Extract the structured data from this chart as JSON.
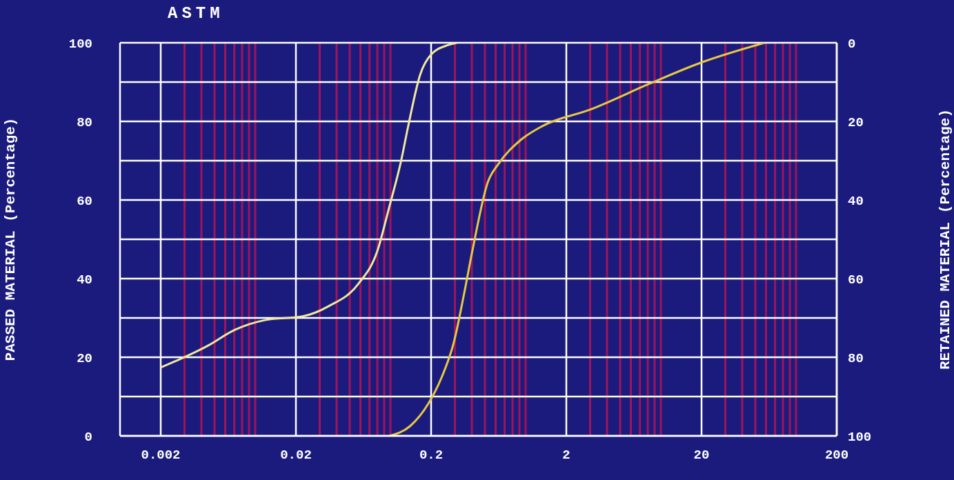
{
  "chart_data": {
    "type": "line",
    "xlabel": null,
    "ylabel": "PASSED MATERIAL (Percentage)",
    "y2label": "RETAINED MATERIAL (Percentage)",
    "annotations": [
      "ASTM"
    ],
    "log": "x",
    "grid": true,
    "marker": "none",
    "line_style": "solid",
    "xlim": [
      0.001,
      200
    ],
    "xticks": [
      0.002,
      {
        "value": 0.003,
        "label": null
      },
      {
        "value": 0.004,
        "label": null
      },
      {
        "value": 0.005,
        "label": null
      },
      {
        "value": 0.006,
        "label": null
      },
      {
        "value": 0.007,
        "label": null
      },
      {
        "value": 0.008,
        "label": null
      },
      {
        "value": 0.009,
        "label": null
      },
      {
        "value": 0.01,
        "label": null
      },
      0.02,
      {
        "value": 0.03,
        "label": null
      },
      {
        "value": 0.04,
        "label": null
      },
      {
        "value": 0.05,
        "label": null
      },
      {
        "value": 0.06,
        "label": null
      },
      {
        "value": 0.07,
        "label": null
      },
      {
        "value": 0.08,
        "label": null
      },
      {
        "value": 0.09,
        "label": null
      },
      {
        "value": 0.1,
        "label": null
      },
      0.2,
      {
        "value": 0.3,
        "label": null
      },
      {
        "value": 0.4,
        "label": null
      },
      {
        "value": 0.5,
        "label": null
      },
      {
        "value": 0.6,
        "label": null
      },
      {
        "value": 0.7,
        "label": null
      },
      {
        "value": 0.8,
        "label": null
      },
      {
        "value": 0.9,
        "label": null
      },
      {
        "value": 1,
        "label": null
      },
      2,
      {
        "value": 3,
        "label": null
      },
      {
        "value": 4,
        "label": null
      },
      {
        "value": 5,
        "label": null
      },
      {
        "value": 6,
        "label": null
      },
      {
        "value": 7,
        "label": null
      },
      {
        "value": 8,
        "label": null
      },
      {
        "value": 9,
        "label": null
      },
      {
        "value": 10,
        "label": null
      },
      20,
      {
        "value": 30,
        "label": null
      },
      {
        "value": 40,
        "label": null
      },
      {
        "value": 50,
        "label": null
      },
      {
        "value": 60,
        "label": null
      },
      {
        "value": 70,
        "label": null
      },
      {
        "value": 80,
        "label": null
      },
      {
        "value": 90,
        "label": null
      },
      {
        "value": 100,
        "label": null
      },
      200
    ],
    "ylim": [
      0,
      100
    ],
    "yticks": [
      0,
      {
        "value": 10,
        "label": null
      },
      20,
      {
        "value": 30,
        "label": null
      },
      40,
      {
        "value": 50,
        "label": null
      },
      60,
      {
        "value": 70,
        "label": null
      },
      80,
      {
        "value": 90,
        "label": null
      },
      100
    ],
    "y2lim": [
      100,
      0
    ],
    "y2ticks": [
      0,
      20,
      40,
      60,
      80,
      100
    ],
    "series": [
      {
        "color": "#f2e89a",
        "x": [
          0.002,
          0.0045,
          0.007,
          0.012,
          0.0224,
          0.035,
          0.058,
          0.08,
          0.098,
          0.12,
          0.135,
          0.166,
          0.2,
          0.266,
          0.31
        ],
        "values": [
          17.4,
          23,
          26.9,
          29.5,
          30.4,
          33,
          38.7,
          47,
          58.2,
          70,
          78.6,
          91.9,
          97,
          99.4,
          100
        ]
      },
      {
        "color": "#e8c840",
        "x": [
          0.098,
          0.14,
          0.19,
          0.24,
          0.295,
          0.35,
          0.405,
          0.526,
          0.63,
          0.9,
          1.33,
          3,
          8.4,
          20,
          58.6
        ],
        "values": [
          0,
          2.5,
          8.1,
          15,
          23.9,
          36,
          47.3,
          64.6,
          69.2,
          75,
          78.8,
          83,
          89.7,
          95,
          100
        ]
      }
    ]
  }
}
